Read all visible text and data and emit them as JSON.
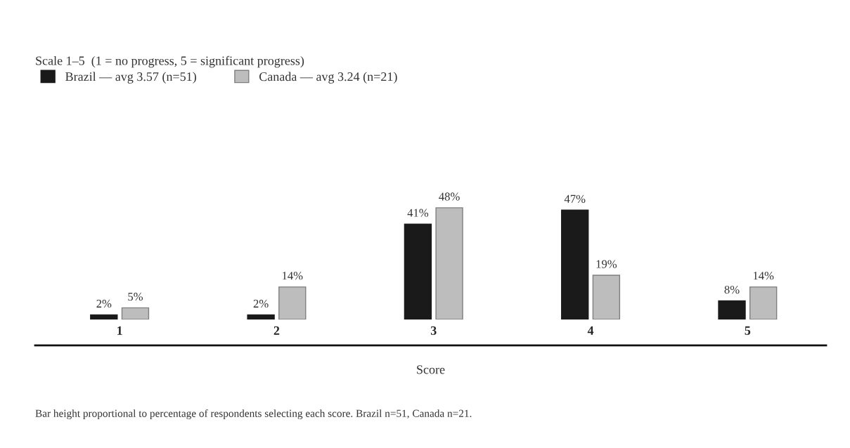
{
  "chart_data": {
    "type": "bar",
    "title": "Scale 1–5  (1 = no progress, 5 = significant progress)",
    "xlabel": "Score",
    "categories": [
      "1",
      "2",
      "3",
      "4",
      "5"
    ],
    "series": [
      {
        "name": "Brazil — avg 3.57 (n=51)",
        "color": "#1a1a1a",
        "values": [
          2,
          2,
          41,
          47,
          8
        ],
        "value_labels": [
          "2%",
          "2%",
          "41%",
          "47%",
          "8%"
        ]
      },
      {
        "name": "Canada — avg 3.24 (n=21)",
        "color": "#bdbdbd",
        "values": [
          5,
          14,
          48,
          19,
          14
        ],
        "value_labels": [
          "5%",
          "14%",
          "48%",
          "19%",
          "14%"
        ]
      }
    ],
    "legend": "top left",
    "grid": false,
    "annotations": [
      "Bar height proportional to percentage of respondents selecting each score. Brazil n=51, Canada n=21."
    ]
  }
}
